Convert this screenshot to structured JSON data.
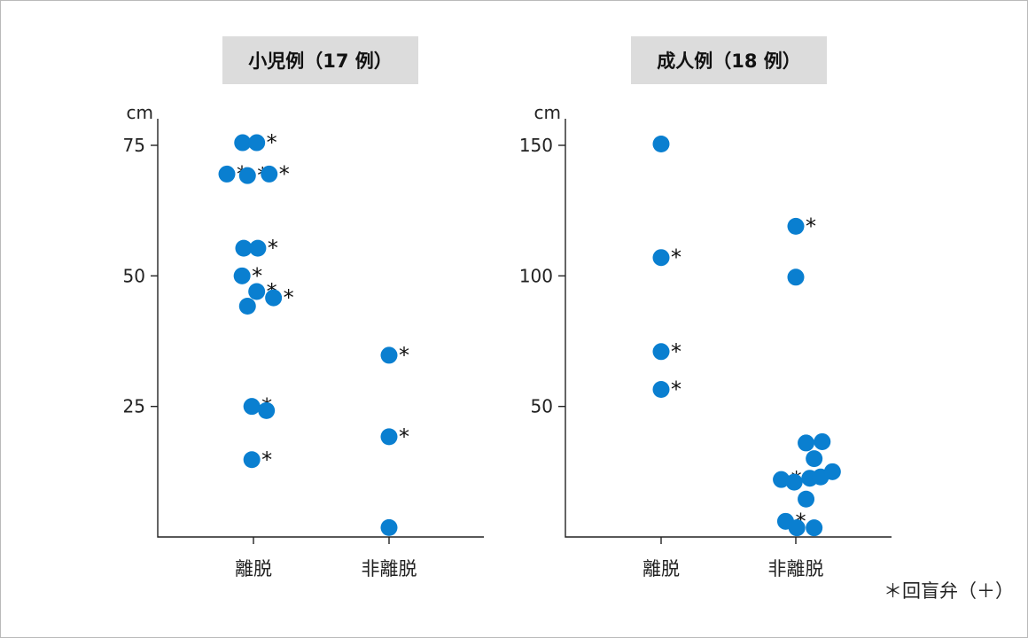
{
  "note": "＊回盲弁（＋）",
  "marker_color": "#0a7fd0",
  "panel_color": "#dcdcdc",
  "chart_data": [
    {
      "type": "scatter",
      "title": "小児例（17 例）",
      "unit": "cm",
      "categories": [
        "離脱",
        "非離脱"
      ],
      "ylim": [
        0,
        80
      ],
      "yticks": [
        25,
        50,
        75
      ],
      "grid": false,
      "points": [
        {
          "category": "離脱",
          "offset": -0.2,
          "y": 75.5,
          "star": false
        },
        {
          "category": "離脱",
          "offset": 0.06,
          "y": 75.5,
          "star": true
        },
        {
          "category": "離脱",
          "offset": -0.49,
          "y": 69.5,
          "star": true
        },
        {
          "category": "離脱",
          "offset": -0.11,
          "y": 69.2,
          "star": true
        },
        {
          "category": "離脱",
          "offset": 0.29,
          "y": 69.5,
          "star": true
        },
        {
          "category": "離脱",
          "offset": -0.18,
          "y": 55.3,
          "star": false
        },
        {
          "category": "離脱",
          "offset": 0.08,
          "y": 55.3,
          "star": true
        },
        {
          "category": "離脱",
          "offset": -0.21,
          "y": 50.0,
          "star": true
        },
        {
          "category": "離脱",
          "offset": 0.06,
          "y": 47.0,
          "star": true
        },
        {
          "category": "離脱",
          "offset": -0.11,
          "y": 44.2,
          "star": false
        },
        {
          "category": "離脱",
          "offset": 0.37,
          "y": 45.8,
          "star": true
        },
        {
          "category": "離脱",
          "offset": -0.03,
          "y": 25.0,
          "star": true
        },
        {
          "category": "離脱",
          "offset": 0.24,
          "y": 24.2,
          "star": false
        },
        {
          "category": "離脱",
          "offset": -0.03,
          "y": 14.8,
          "star": true
        },
        {
          "category": "非離脱",
          "offset": 0.0,
          "y": 34.8,
          "star": true
        },
        {
          "category": "非離脱",
          "offset": 0.0,
          "y": 19.2,
          "star": true
        },
        {
          "category": "非離脱",
          "offset": 0.0,
          "y": 1.8,
          "star": false
        }
      ]
    },
    {
      "type": "scatter",
      "title": "成人例（18 例）",
      "unit": "cm",
      "categories": [
        "離脱",
        "非離脱"
      ],
      "ylim": [
        0,
        160
      ],
      "yticks": [
        50,
        100,
        150
      ],
      "grid": false,
      "points": [
        {
          "category": "離脱",
          "offset": 0.0,
          "y": 150.5,
          "star": false
        },
        {
          "category": "離脱",
          "offset": 0.0,
          "y": 107.0,
          "star": true
        },
        {
          "category": "離脱",
          "offset": 0.0,
          "y": 71.0,
          "star": true
        },
        {
          "category": "離脱",
          "offset": 0.0,
          "y": 56.5,
          "star": true
        },
        {
          "category": "非離脱",
          "offset": 0.0,
          "y": 119.0,
          "star": true
        },
        {
          "category": "非離脱",
          "offset": 0.0,
          "y": 99.5,
          "star": false
        },
        {
          "category": "非離脱",
          "offset": 0.19,
          "y": 36.0,
          "star": false
        },
        {
          "category": "非離脱",
          "offset": 0.49,
          "y": 36.5,
          "star": false
        },
        {
          "category": "非離脱",
          "offset": 0.34,
          "y": 30.0,
          "star": false
        },
        {
          "category": "非離脱",
          "offset": -0.27,
          "y": 22.0,
          "star": true
        },
        {
          "category": "非離脱",
          "offset": -0.03,
          "y": 21.0,
          "star": true
        },
        {
          "category": "非離脱",
          "offset": 0.26,
          "y": 22.5,
          "star": false
        },
        {
          "category": "非離脱",
          "offset": 0.46,
          "y": 23.0,
          "star": false
        },
        {
          "category": "非離脱",
          "offset": 0.68,
          "y": 25.0,
          "star": false
        },
        {
          "category": "非離脱",
          "offset": 0.19,
          "y": 14.5,
          "star": false
        },
        {
          "category": "非離脱",
          "offset": -0.19,
          "y": 6.0,
          "star": true
        },
        {
          "category": "非離脱",
          "offset": 0.02,
          "y": 3.5,
          "star": false
        },
        {
          "category": "非離脱",
          "offset": 0.34,
          "y": 3.5,
          "star": false
        }
      ]
    }
  ]
}
